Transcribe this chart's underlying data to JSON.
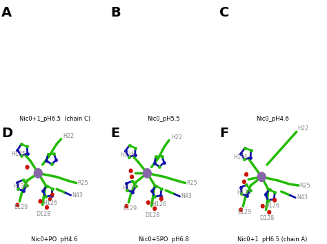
{
  "panels": [
    "A",
    "B",
    "C",
    "D",
    "E",
    "F"
  ],
  "captions": [
    "Nic0+1_pH6.5  (chain C)",
    "Nic0_pH5.5",
    "Nic0_pH4.6",
    "Nic0+PO  pH4.6",
    "Nic0+SPO  pH6.8",
    "Nic0+1  pH6.5 (chain A)"
  ],
  "bg_color": "#ffffff",
  "green": "#22bb00",
  "blue": "#1111aa",
  "red": "#cc1100",
  "orange": "#dd6600",
  "purple": "#8866aa",
  "label_gray": "#888888",
  "figure_width": 4.74,
  "figure_height": 3.54,
  "dpi": 100
}
